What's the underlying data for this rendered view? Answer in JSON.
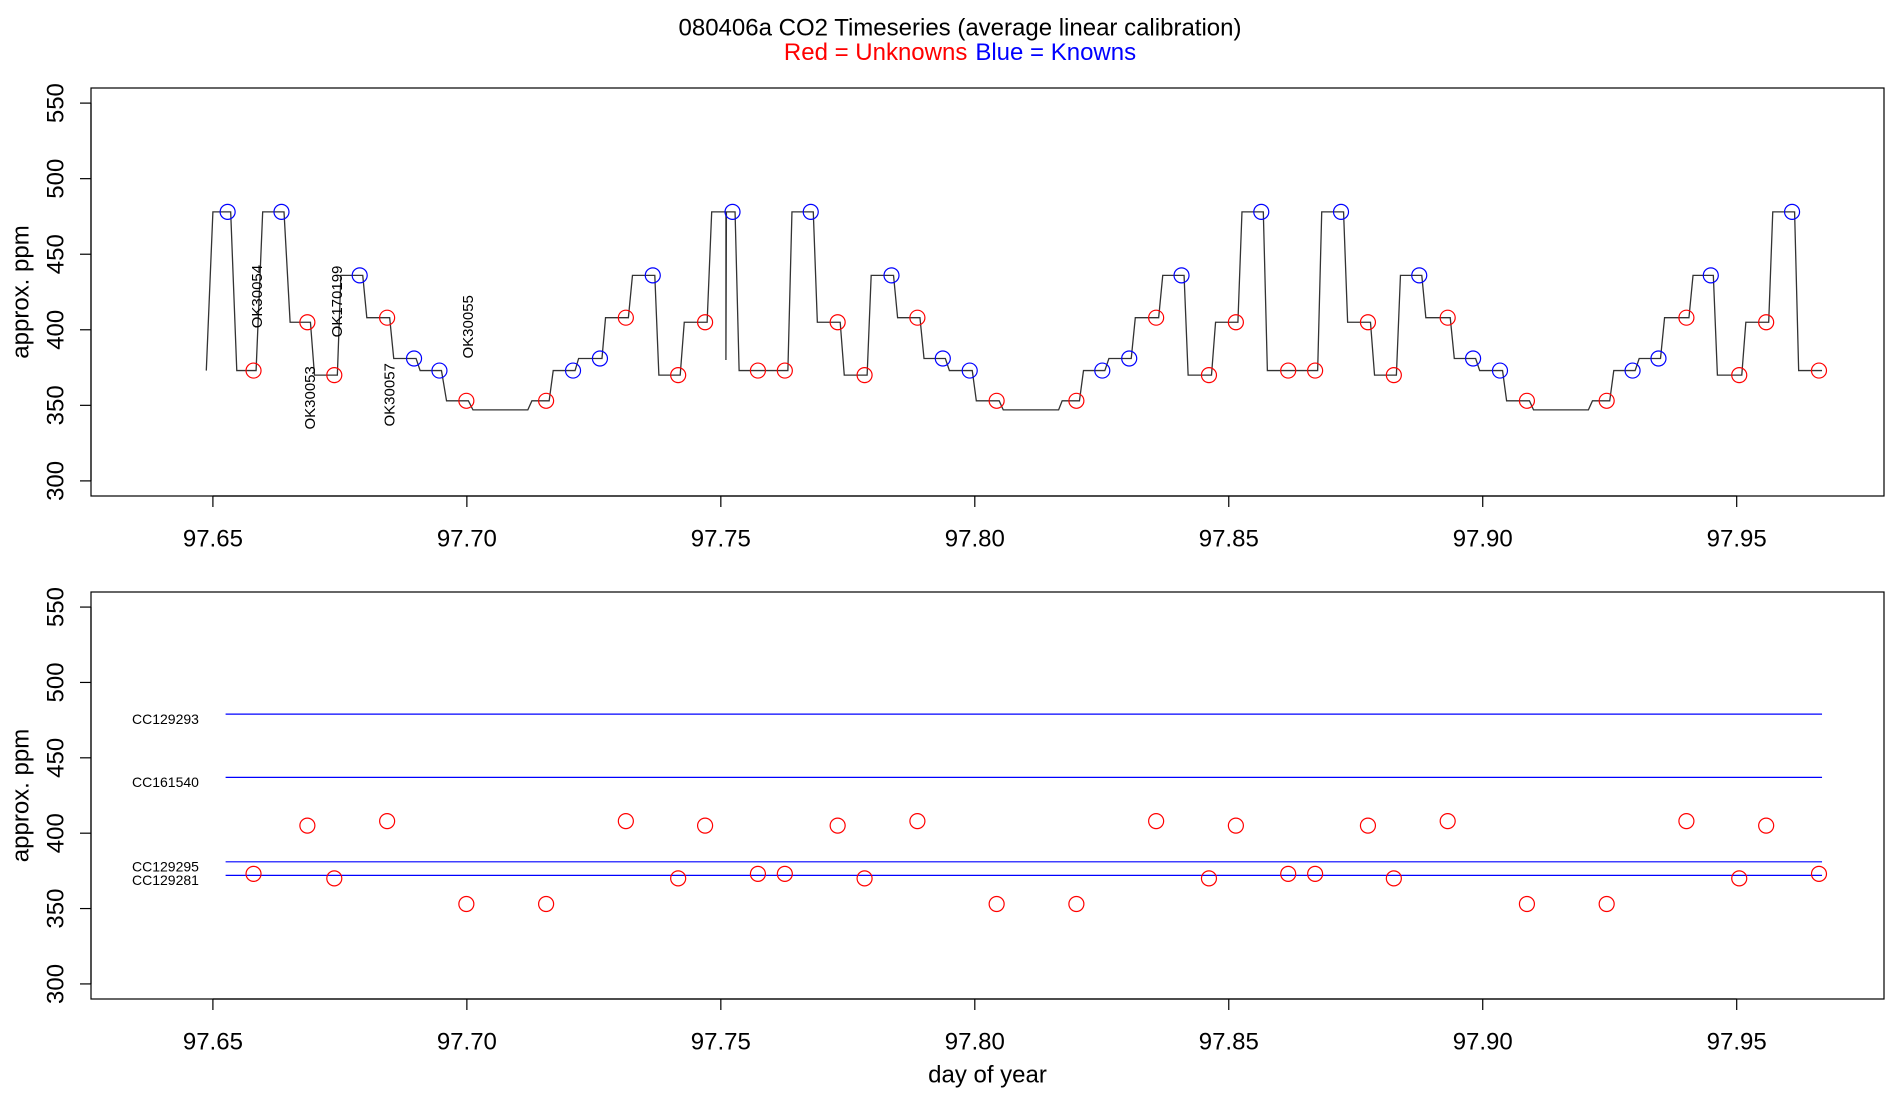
{
  "chart_data": [
    {
      "type": "line",
      "title": "080406a   CO2 Timeseries (average linear calibration)",
      "ylabel": "approx. ppm",
      "xlim": [
        97.626,
        97.979
      ],
      "ylim": [
        290,
        560
      ],
      "xticks": [
        97.65,
        {
          "value": 97.7,
          "label": "97.70"
        },
        97.75,
        {
          "value": 97.8,
          "label": "97.80"
        },
        97.85,
        {
          "value": 97.9,
          "label": "97.90"
        },
        97.95
      ],
      "yticks": [
        300,
        350,
        400,
        450,
        500,
        550
      ],
      "series": [
        {
          "mode": "line",
          "color": "#333333",
          "x": [
            97.6487,
            97.65,
            97.6535,
            97.6547,
            97.6585,
            97.6598,
            97.664,
            97.6652,
            97.6692,
            97.67,
            97.6745,
            97.6752,
            97.6795,
            97.6803,
            97.6848,
            97.6856,
            97.69,
            97.6908,
            97.695,
            97.696,
            97.7003,
            97.7012,
            97.712,
            97.7128,
            97.7162,
            97.717,
            97.7213,
            97.722,
            97.7266,
            97.7273,
            97.7318,
            97.7326,
            97.737,
            97.7378,
            97.742,
            97.7428,
            97.7473,
            97.7482,
            97.751,
            97.751,
            97.7511,
            97.7528,
            97.7536,
            97.7632,
            97.764,
            97.7682,
            97.769,
            97.7735,
            97.7743,
            97.7788,
            97.7796,
            97.784,
            97.7848,
            97.7892,
            97.79,
            97.7942,
            97.795,
            97.7995,
            97.8003,
            97.8048,
            97.8056,
            97.8165,
            97.8172,
            97.8206,
            97.8214,
            97.8256,
            97.8264,
            97.8308,
            97.8316,
            97.8362,
            97.837,
            97.8412,
            97.842,
            97.8466,
            97.8474,
            97.8518,
            97.8526,
            97.8568,
            97.8576,
            97.8675,
            97.8683,
            97.8726,
            97.8734,
            97.8779,
            97.8787,
            97.883,
            97.8838,
            97.888,
            97.8888,
            97.8936,
            97.8944,
            97.8986,
            97.8994,
            97.9039,
            97.9047,
            97.9092,
            97.91,
            97.9208,
            97.9216,
            97.925,
            97.9258,
            97.93,
            97.9308,
            97.935,
            97.9358,
            97.9406,
            97.9414,
            97.9454,
            97.9462,
            97.951,
            97.9518,
            97.9563,
            97.9571,
            97.9614,
            97.9622,
            97.9668
          ],
          "values": [
            373,
            478,
            478,
            373,
            373,
            478,
            478,
            405,
            405,
            370,
            370,
            436,
            436,
            408,
            408,
            381,
            381,
            373,
            373,
            353,
            353,
            347,
            347,
            353,
            353,
            373,
            373,
            381,
            381,
            408,
            408,
            436,
            436,
            370,
            370,
            405,
            405,
            478,
            478,
            380,
            478,
            478,
            373,
            373,
            478,
            478,
            405,
            405,
            370,
            370,
            436,
            436,
            408,
            408,
            381,
            381,
            373,
            373,
            353,
            353,
            347,
            347,
            353,
            353,
            373,
            373,
            381,
            381,
            408,
            408,
            436,
            436,
            370,
            370,
            405,
            405,
            478,
            478,
            373,
            373,
            478,
            478,
            405,
            405,
            370,
            370,
            436,
            436,
            408,
            408,
            381,
            381,
            373,
            373,
            353,
            353,
            347,
            347,
            353,
            353,
            373,
            373,
            381,
            381,
            408,
            408,
            436,
            436,
            370,
            370,
            405,
            405,
            478,
            478,
            373,
            373
          ]
        },
        {
          "mode": "points",
          "name": "Red = Unknowns",
          "color": "#ff0000",
          "x": [
            97.658,
            97.6686,
            97.6739,
            97.6843,
            97.6999,
            97.7156,
            97.7313,
            97.7416,
            97.7469,
            97.7573,
            97.7626,
            97.773,
            97.7783,
            97.7887,
            97.8043,
            97.82,
            97.8357,
            97.8461,
            97.8514,
            97.8617,
            97.867,
            97.8774,
            97.8825,
            97.8931,
            97.9087,
            97.9244,
            97.9401,
            97.9505,
            97.9558,
            97.9662
          ],
          "values": [
            373,
            405,
            370,
            408,
            353,
            353,
            408,
            370,
            405,
            373,
            373,
            405,
            370,
            408,
            353,
            353,
            408,
            370,
            405,
            373,
            373,
            405,
            370,
            408,
            353,
            353,
            408,
            370,
            405,
            373
          ],
          "annotations": [
            {
              "text": "OK30054",
              "x": 97.6589,
              "y": 401
            },
            {
              "text": "OK30053",
              "x": 97.6693,
              "y": 334
            },
            {
              "text": "OK170199",
              "x": 97.6746,
              "y": 395
            },
            {
              "text": "OK30057",
              "x": 97.685,
              "y": 336
            },
            {
              "text": "OK30055",
              "x": 97.7004,
              "y": 381
            }
          ]
        },
        {
          "mode": "points",
          "name": "Blue = Knowns",
          "color": "#0000ff",
          "x": [
            97.6529,
            97.6635,
            97.6789,
            97.6896,
            97.6946,
            97.7209,
            97.7262,
            97.7366,
            97.7523,
            97.7677,
            97.7836,
            97.7937,
            97.799,
            97.8251,
            97.8304,
            97.8407,
            97.8564,
            97.8721,
            97.8875,
            97.8981,
            97.9034,
            97.9295,
            97.9346,
            97.9449,
            97.9609
          ],
          "values": [
            478,
            478,
            436,
            381,
            373,
            373,
            381,
            436,
            478,
            478,
            436,
            381,
            373,
            373,
            381,
            436,
            478,
            478,
            436,
            381,
            373,
            373,
            381,
            436,
            478
          ]
        }
      ]
    },
    {
      "type": "line",
      "xlabel": "day of year",
      "ylabel": "approx. ppm",
      "xlim": [
        97.626,
        97.979
      ],
      "ylim": [
        290,
        560
      ],
      "xticks": [
        97.65,
        {
          "value": 97.7,
          "label": "97.70"
        },
        97.75,
        {
          "value": 97.8,
          "label": "97.80"
        },
        97.85,
        {
          "value": 97.9,
          "label": "97.90"
        },
        97.95
      ],
      "yticks": [
        300,
        350,
        400,
        450,
        500,
        550
      ],
      "reference_lines": [
        {
          "label": "CC129293",
          "color": "#0000ff",
          "x": [
            97.6525,
            97.9668
          ],
          "values": [
            479,
            479
          ]
        },
        {
          "label": "CC161540",
          "color": "#0000ff",
          "x": [
            97.6525,
            97.9668
          ],
          "values": [
            437,
            437
          ]
        },
        {
          "label": "CC129295",
          "color": "#0000ff",
          "x": [
            97.6525,
            97.9668
          ],
          "values": [
            381,
            381
          ]
        },
        {
          "label": "CC129281",
          "color": "#0000ff",
          "x": [
            97.6525,
            97.9668
          ],
          "values": [
            372,
            372
          ]
        }
      ],
      "series": [
        {
          "mode": "points",
          "color": "#ff0000",
          "x": [
            97.658,
            97.6686,
            97.6739,
            97.6843,
            97.6999,
            97.7156,
            97.7313,
            97.7416,
            97.7469,
            97.7573,
            97.7626,
            97.773,
            97.7783,
            97.7887,
            97.8043,
            97.82,
            97.8357,
            97.8461,
            97.8514,
            97.8617,
            97.867,
            97.8774,
            97.8825,
            97.8931,
            97.9087,
            97.9244,
            97.9401,
            97.9505,
            97.9558,
            97.9662
          ],
          "values": [
            373,
            405,
            370,
            408,
            353,
            353,
            408,
            370,
            405,
            373,
            373,
            405,
            370,
            408,
            353,
            353,
            408,
            370,
            405,
            373,
            373,
            405,
            370,
            408,
            353,
            353,
            408,
            370,
            405,
            373
          ]
        }
      ]
    }
  ]
}
